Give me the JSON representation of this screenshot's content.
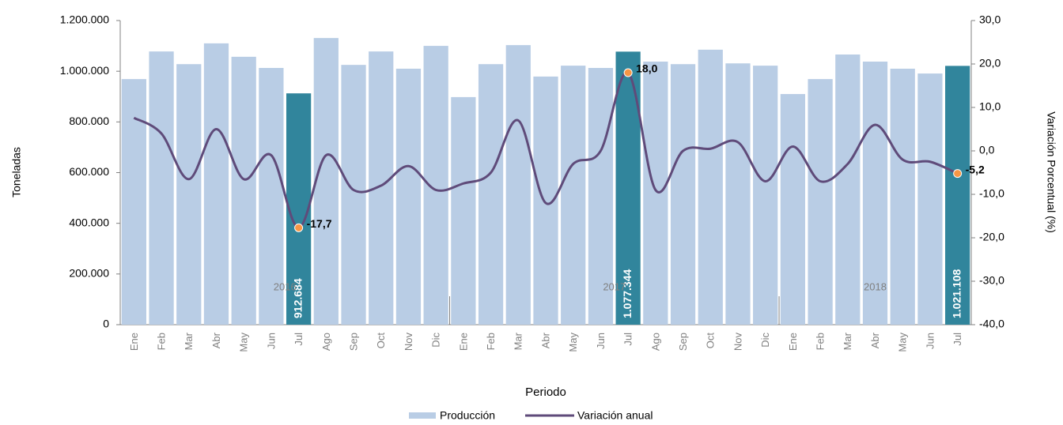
{
  "chart_data": {
    "type": "bar_line",
    "categories": [
      "Ene",
      "Feb",
      "Mar",
      "Abr",
      "May",
      "Jun",
      "Jul",
      "Ago",
      "Sep",
      "Oct",
      "Nov",
      "Dic",
      "Ene",
      "Feb",
      "Mar",
      "Abr",
      "May",
      "Jun",
      "Jul",
      "Ago",
      "Sep",
      "Oct",
      "Nov",
      "Dic",
      "Ene",
      "Feb",
      "Mar",
      "Abr",
      "May",
      "Jun",
      "Jul"
    ],
    "groups": [
      {
        "name": "2016",
        "count": 12
      },
      {
        "name": "2017",
        "count": 12
      },
      {
        "name": "2018",
        "count": 7
      }
    ],
    "xlabel": "Periodo",
    "ylabel": "Toneladas",
    "y2label": "Variación Porcentual (%)",
    "ylim": [
      0,
      1200000
    ],
    "yticks": [
      0,
      {
        "value": 200000,
        "label": "200.000"
      },
      {
        "value": 400000,
        "label": "400.000"
      },
      {
        "value": 600000,
        "label": "600.000"
      },
      {
        "value": 800000,
        "label": "800.000"
      },
      {
        "value": 1000000,
        "label": "1.000.000"
      },
      {
        "value": 1200000,
        "label": "1.200.000"
      }
    ],
    "y2lim": [
      -40,
      30
    ],
    "y2ticks": [
      {
        "value": -40,
        "label": "-40,0"
      },
      {
        "value": -30,
        "label": "-30,0"
      },
      {
        "value": -20,
        "label": "-20,0"
      },
      {
        "value": -10,
        "label": "-10,0"
      },
      {
        "value": 0,
        "label": "0,0"
      },
      {
        "value": 10,
        "label": "10,0"
      },
      {
        "value": 20,
        "label": "20,0"
      },
      {
        "value": 30,
        "label": "30,0"
      }
    ],
    "highlight_color": "#31859c",
    "marker_color": "#f79646",
    "series": [
      {
        "name": "Producción",
        "type": "bar",
        "color": "#b9cde5",
        "values": [
          969000,
          1078000,
          1028000,
          1110000,
          1057000,
          1013000,
          912684,
          1131000,
          1025000,
          1078000,
          1010000,
          1100000,
          898000,
          1028000,
          1103000,
          979000,
          1022000,
          1013000,
          1077344,
          1038000,
          1028000,
          1085000,
          1031000,
          1022000,
          910000,
          969000,
          1066000,
          1038000,
          1010000,
          991000,
          1021108
        ],
        "value_labels": [
          null,
          null,
          null,
          null,
          null,
          null,
          "912.684",
          null,
          null,
          null,
          null,
          null,
          null,
          null,
          null,
          null,
          null,
          null,
          "1.077.344",
          null,
          null,
          null,
          null,
          null,
          null,
          null,
          null,
          null,
          null,
          null,
          "1.021.108"
        ]
      },
      {
        "name": "Variación anual",
        "type": "line",
        "axis": "y2",
        "color": "#5f4b7a",
        "values": [
          7.6,
          4,
          -6.5,
          5,
          -6.5,
          -1,
          -17.7,
          -1,
          -9,
          -8,
          -3.5,
          -9,
          -7.5,
          -5,
          7,
          -12,
          -3,
          0,
          18,
          -9,
          0,
          0.5,
          2,
          -7,
          1,
          -7,
          -3,
          6,
          -2,
          -2.5,
          -5.2
        ],
        "value_labels": [
          null,
          null,
          null,
          null,
          null,
          null,
          "-17,7",
          null,
          null,
          null,
          null,
          null,
          null,
          null,
          null,
          null,
          null,
          null,
          "18,0",
          null,
          null,
          null,
          null,
          null,
          null,
          null,
          null,
          null,
          null,
          null,
          "-5,2"
        ]
      }
    ]
  }
}
